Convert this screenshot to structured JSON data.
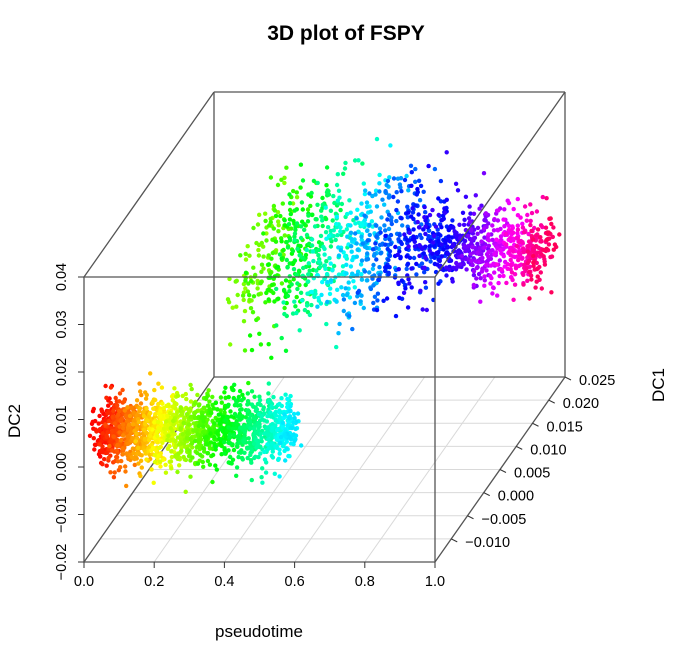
{
  "chart_data": {
    "type": "scatter",
    "subtype": "3d-scatter",
    "title": "3D plot of FSPY",
    "xlabel": "pseudotime",
    "ylabel": "DC1",
    "zlabel": "DC2",
    "xlim": [
      0.0,
      1.0
    ],
    "ylim": [
      -0.015,
      0.025
    ],
    "zlim": [
      -0.02,
      0.04
    ],
    "x_ticks": [
      "0.0",
      "0.2",
      "0.4",
      "0.6",
      "0.8",
      "1.0"
    ],
    "y_ticks": [
      "−0.010",
      "−0.005",
      "0.000",
      "0.005",
      "0.010",
      "0.015",
      "0.020",
      "0.025"
    ],
    "z_ticks": [
      "−0.02",
      "−0.01",
      "0.00",
      "0.01",
      "0.02",
      "0.03",
      "0.04"
    ],
    "grid": true,
    "color_by": "pseudotime",
    "colormap": "rainbow (red → yellow → green → cyan → blue → magenta → red)",
    "clusters": [
      {
        "pseudotime": [
          0.0,
          0.55
        ],
        "dc1_mean": -0.01,
        "dc1_sd": 0.0015,
        "dc2_mean": 0.003,
        "dc2_sd": 0.003
      },
      {
        "pseudotime": [
          0.25,
          0.75
        ],
        "dc1_mean": 0.01,
        "dc1_sd": 0.005,
        "dc2_mean": 0.022,
        "dc2_sd": 0.006
      },
      {
        "pseudotime": [
          0.65,
          1.0
        ],
        "dc1_mean": 0.02,
        "dc1_sd": 0.002,
        "dc2_mean": 0.012,
        "dc2_sd": 0.0035
      }
    ]
  }
}
